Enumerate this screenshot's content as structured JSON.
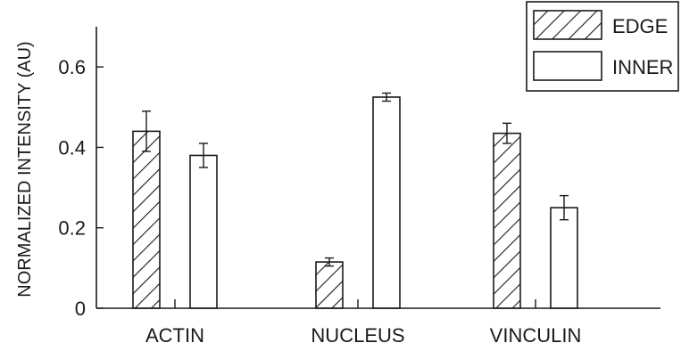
{
  "chart_data": {
    "type": "bar",
    "title": "",
    "xlabel": "",
    "ylabel": "NORMALIZED INTENSITY (AU)",
    "ylim": [
      0,
      0.7
    ],
    "yticks": [
      "0",
      "0.2",
      "0.4",
      "0.6"
    ],
    "yticks_values": [
      0,
      0.2,
      0.4,
      0.6
    ],
    "categories": [
      "ACTIN",
      "NUCLEUS",
      "VINCULIN"
    ],
    "series": [
      {
        "name": "EDGE",
        "pattern": "hatched",
        "values": [
          0.44,
          0.115,
          0.435
        ],
        "errors": [
          0.05,
          0.01,
          0.025
        ]
      },
      {
        "name": "INNER",
        "pattern": "open",
        "values": [
          0.38,
          0.525,
          0.25
        ],
        "errors": [
          0.03,
          0.01,
          0.03
        ]
      }
    ],
    "legend_position": "top-right",
    "grid": false,
    "colors": {
      "stroke": "#1a1a1a",
      "fill": "#ffffff"
    }
  }
}
